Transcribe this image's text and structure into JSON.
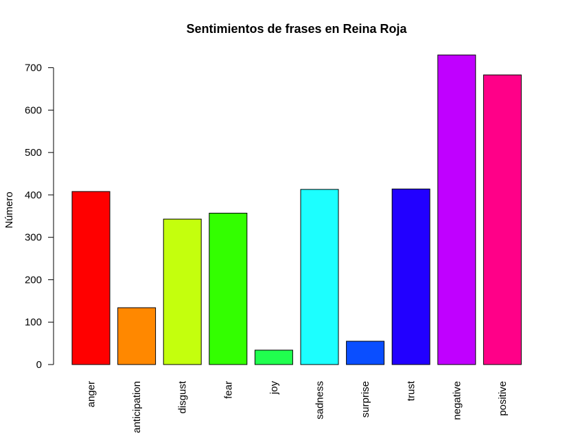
{
  "chart_data": {
    "type": "bar",
    "title": "Sentimientos de frases en Reina Roja",
    "xlabel": "",
    "ylabel": "Número",
    "ylim": [
      0,
      750
    ],
    "yticks": [
      0,
      100,
      200,
      300,
      400,
      500,
      600,
      700
    ],
    "grid": false,
    "categories": [
      "anger",
      "anticipation",
      "disgust",
      "fear",
      "joy",
      "sadness",
      "surprise",
      "trust",
      "negative",
      "positive"
    ],
    "values": [
      408,
      134,
      343,
      357,
      34,
      413,
      55,
      414,
      730,
      683
    ],
    "colors": [
      "#FF0000",
      "#FF8800",
      "#C4FF0D",
      "#33FF00",
      "#20FF4E",
      "#1CFFFF",
      "#0A4EFF",
      "#2200FF",
      "#C000FF",
      "#FF0088"
    ]
  }
}
